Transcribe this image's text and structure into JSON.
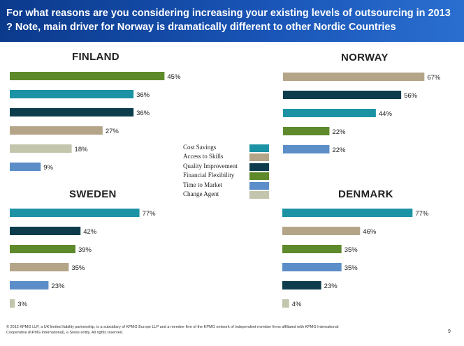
{
  "header": {
    "title": "For what reasons are you considering increasing your existing levels of outsourcing in 2013 ? Note, main driver for Norway is dramatically different to other Nordic Countries"
  },
  "colors": {
    "header_bg": "#1a56b8",
    "Cost Savings": "#1b93a4",
    "Access to Skills": "#b5a588",
    "Quality Improvement": "#0d3d4d",
    "Financial Flexibility": "#5e8a2c",
    "Time to Market": "#5b8ec8",
    "Change Agent": "#c3c5ad"
  },
  "legend": [
    {
      "label": "Cost Savings",
      "icon": "legend-swatch"
    },
    {
      "label": "Access to Skills",
      "icon": "legend-swatch"
    },
    {
      "label": "Quality Improvement",
      "icon": "legend-swatch"
    },
    {
      "label": "Financial Flexibility",
      "icon": "legend-swatch"
    },
    {
      "label": "Time to Market",
      "icon": "legend-swatch"
    },
    {
      "label": "Change Agent",
      "icon": "legend-swatch"
    }
  ],
  "chart_data": [
    {
      "type": "bar",
      "title": "FINLAND",
      "unit": "%",
      "xlim": [
        0,
        100
      ],
      "categories": [
        "Financial Flexibility",
        "Cost Savings",
        "Quality Improvement",
        "Access to Skills",
        "Change Agent",
        "Time to Market"
      ],
      "values": [
        45,
        36,
        36,
        27,
        18,
        9
      ]
    },
    {
      "type": "bar",
      "title": "NORWAY",
      "unit": "%",
      "xlim": [
        0,
        100
      ],
      "categories": [
        "Access to Skills",
        "Quality Improvement",
        "Cost Savings",
        "Financial Flexibility",
        "Time to Market"
      ],
      "values": [
        67,
        56,
        44,
        22,
        22
      ]
    },
    {
      "type": "bar",
      "title": "SWEDEN",
      "unit": "%",
      "xlim": [
        0,
        100
      ],
      "categories": [
        "Cost Savings",
        "Quality Improvement",
        "Financial Flexibility",
        "Access to Skills",
        "Time to Market",
        "Change Agent"
      ],
      "values": [
        77,
        42,
        39,
        35,
        23,
        3
      ]
    },
    {
      "type": "bar",
      "title": "DENMARK",
      "unit": "%",
      "xlim": [
        0,
        100
      ],
      "categories": [
        "Cost Savings",
        "Access to Skills",
        "Financial Flexibility",
        "Time to Market",
        "Quality Improvement",
        "Change Agent"
      ],
      "values": [
        77,
        46,
        35,
        35,
        23,
        4
      ]
    }
  ],
  "footer": {
    "text": "© 2012 KPMG LLP, a UK limited liability partnership, is a subsidiary of KPMG Europe LLP and a member firm of the KPMG network of independent member firms affiliated with KPMG International Cooperative (KPMG International), a Swiss entity. All rights reserved.",
    "page": "9"
  }
}
